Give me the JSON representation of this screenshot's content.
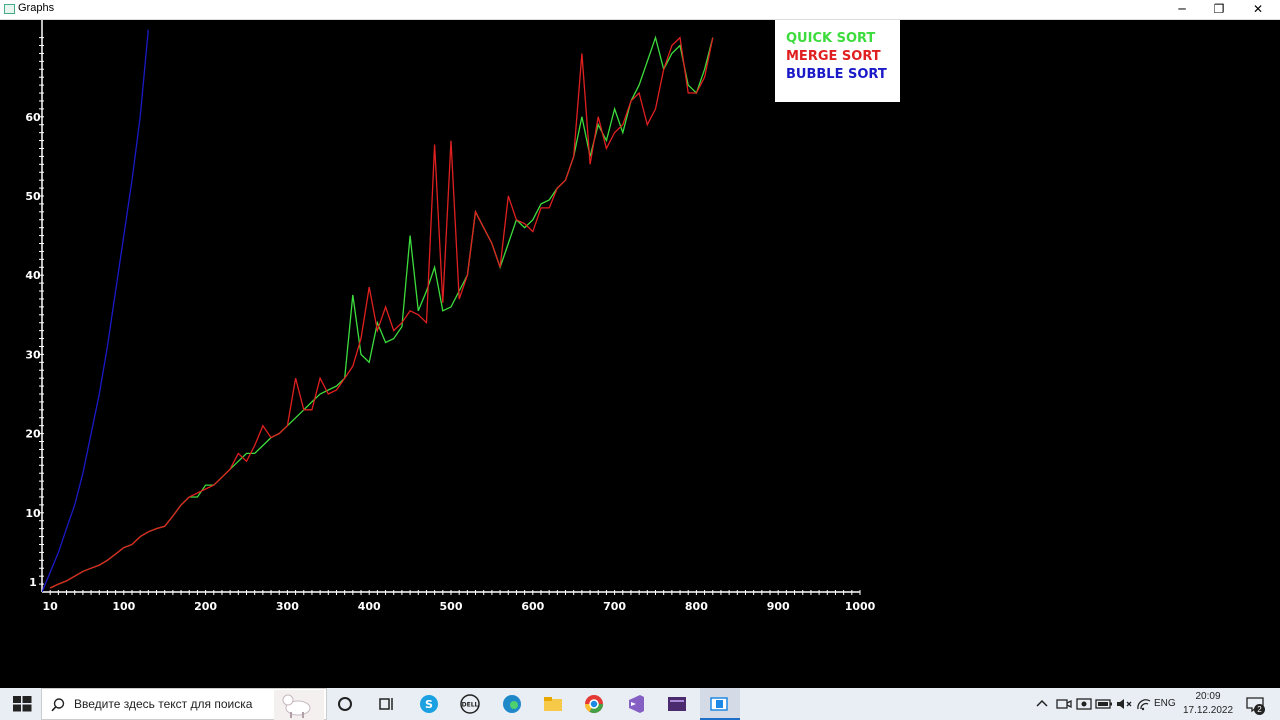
{
  "window": {
    "title": "Graphs",
    "minimize": "─",
    "maximize": "❐",
    "close": "✕"
  },
  "legend": {
    "items": [
      {
        "label": "QUICK SORT",
        "color": "#3ddc3d"
      },
      {
        "label": "MERGE SORT",
        "color": "#e02020"
      },
      {
        "label": "BUBBLE SORT",
        "color": "#1a1ac8"
      }
    ]
  },
  "chart_data": {
    "type": "line",
    "x_ticks": [
      "10",
      "100",
      "200",
      "300",
      "400",
      "500",
      "600",
      "700",
      "800",
      "900",
      "1000"
    ],
    "y_ticks": [
      "1",
      "10",
      "20",
      "30",
      "40",
      "50",
      "60"
    ],
    "xlim": [
      0,
      1000
    ],
    "ylim": [
      0,
      70
    ],
    "series": [
      {
        "name": "QUICK SORT",
        "color": "#3ddc3d",
        "x": [
          10,
          20,
          30,
          40,
          50,
          60,
          70,
          80,
          90,
          100,
          110,
          120,
          130,
          140,
          150,
          160,
          170,
          180,
          190,
          200,
          210,
          220,
          230,
          240,
          250,
          260,
          270,
          280,
          290,
          300,
          310,
          320,
          330,
          340,
          350,
          360,
          370,
          380,
          390,
          400,
          410,
          420,
          430,
          440,
          450,
          460,
          470,
          480,
          490,
          500,
          510,
          520,
          530,
          540,
          550,
          560,
          570,
          580,
          590,
          600,
          610,
          620,
          630,
          640,
          650,
          660,
          670,
          680,
          690,
          700,
          710,
          720,
          730,
          740,
          750,
          760,
          770,
          780,
          790,
          800,
          810,
          820
        ],
        "y": [
          0.5,
          1,
          1.4,
          2,
          2.6,
          3,
          3.4,
          4,
          4.8,
          5.6,
          6,
          7,
          7.6,
          8,
          8.3,
          9.6,
          11,
          12,
          12,
          13.5,
          13.5,
          14.5,
          15.5,
          16.5,
          17.5,
          17.5,
          18.5,
          19.5,
          20,
          21,
          22,
          23,
          24,
          25,
          25.5,
          26,
          27,
          37.5,
          30,
          29,
          34,
          31.5,
          32,
          33.5,
          45,
          35.5,
          38,
          41,
          35.5,
          36,
          38,
          40,
          48,
          46,
          44,
          41,
          44,
          47,
          46,
          47,
          49,
          49.5,
          51,
          52,
          55,
          60,
          55,
          59,
          57,
          61,
          58,
          62,
          64,
          67,
          70,
          66,
          68,
          69,
          64,
          63,
          66,
          70
        ]
      },
      {
        "name": "MERGE SORT",
        "color": "#e02020",
        "x": [
          10,
          20,
          30,
          40,
          50,
          60,
          70,
          80,
          90,
          100,
          110,
          120,
          130,
          140,
          150,
          160,
          170,
          180,
          190,
          200,
          210,
          220,
          230,
          240,
          250,
          260,
          270,
          280,
          290,
          300,
          310,
          320,
          330,
          340,
          350,
          360,
          370,
          380,
          390,
          400,
          410,
          420,
          430,
          440,
          450,
          460,
          470,
          480,
          490,
          500,
          510,
          520,
          530,
          540,
          550,
          560,
          570,
          580,
          590,
          600,
          610,
          620,
          630,
          640,
          650,
          660,
          670,
          680,
          690,
          700,
          710,
          720,
          730,
          740,
          750,
          760,
          770,
          780,
          790,
          800,
          810,
          820
        ],
        "y": [
          0.5,
          1,
          1.4,
          2,
          2.6,
          3,
          3.4,
          4,
          4.8,
          5.6,
          6,
          7,
          7.6,
          8,
          8.3,
          9.6,
          11,
          12,
          12.5,
          13,
          13.5,
          14.5,
          15.5,
          17.5,
          16.5,
          18.5,
          21,
          19.5,
          20,
          21,
          27,
          23,
          23,
          27,
          25,
          25.5,
          27,
          28.5,
          32,
          38.5,
          33,
          36,
          33,
          34,
          35.5,
          35,
          34,
          56.5,
          36.5,
          57,
          37,
          40,
          48,
          46,
          44,
          41,
          50,
          47,
          46.5,
          45.5,
          48.5,
          48.5,
          51,
          52,
          55,
          68,
          54,
          60,
          56,
          58,
          59,
          62,
          63,
          59,
          61,
          66,
          69,
          70,
          63,
          63,
          65,
          70
        ]
      },
      {
        "name": "BUBBLE SORT",
        "color": "#1a1ac8",
        "x": [
          0,
          10,
          20,
          30,
          40,
          50,
          60,
          70,
          80,
          90,
          100,
          110,
          120,
          130
        ],
        "y": [
          0,
          2.5,
          5,
          8,
          11,
          15,
          20,
          25,
          31,
          38,
          45,
          52,
          60,
          71
        ]
      }
    ]
  },
  "taskbar": {
    "search_placeholder": "Введите здесь текст для поиска",
    "lang": "ENG",
    "time": "20:09",
    "date": "17.12.2022",
    "notif_count": "2"
  }
}
